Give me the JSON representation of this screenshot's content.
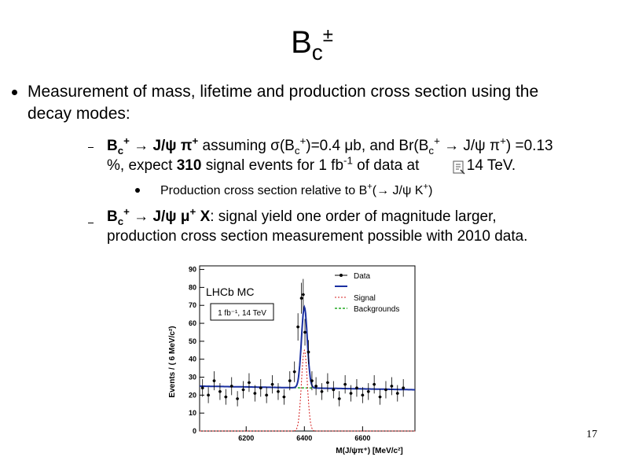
{
  "title": {
    "base": "B",
    "sub": "c",
    "sup": "±"
  },
  "bullet1": {
    "line1": "Measurement of mass, lifetime and production cross section using the",
    "line2": "decay modes:"
  },
  "sub1": {
    "decay_b": "B",
    "decay_c": "c",
    "decay_plus": "+",
    "decay_rest": " → J/ψ π",
    "line1_rest": " assuming σ(B",
    "sigma_c": "c",
    "sigma_plus": "+",
    "line1_mid": ")=0.4 μb, and Br(B",
    "br_c": "c",
    "br_plus": "+",
    "br_mid": " → J/ψ π",
    "br_plus2": "+",
    "br_end": ") =0.13",
    "line2_a": "%, expect ",
    "signal_count": "310",
    "line2_b": " signal events for 1 fb",
    "lumi_exp": "-1",
    "line2_c": " of data at",
    "line2_d": "= 14 TeV."
  },
  "sub1_item": {
    "text_a": "Production cross section relative to B",
    "plus": "+",
    "text_b": "(→ J/ψ K",
    "plus2": "+",
    "text_c": ")"
  },
  "sub2": {
    "decay_b": "B",
    "decay_c": "c",
    "decay_plus": "+",
    "decay_mid": " → J/ψ μ",
    "decay_plus2": "+",
    "decay_x": " X",
    "line1_rest": ": signal yield one order of magnitude larger,",
    "line2": "production cross section measurement possible with 2010 data."
  },
  "plot": {
    "ylabel": "Events / ( 6 MeV/c²)",
    "xlabel": "M(J/ψπ⁺) [MeV/c²]",
    "lhcb_label": "LHCb MC",
    "legend": [
      "Data",
      "Signal",
      "Backgrounds"
    ],
    "lumi_box": "1 fb⁻¹, 14 TeV",
    "yticks": [
      "0",
      "10",
      "20",
      "30",
      "40",
      "50",
      "60",
      "70",
      "80",
      "90"
    ],
    "xticks": [
      "6200",
      "6400",
      "6600"
    ],
    "colors": {
      "fit": "#1a2fa0",
      "signal": "#d42020",
      "background": "#22aa22",
      "data": "#000000"
    }
  },
  "chart_data": {
    "type": "scatter",
    "title": "",
    "xlabel": "M(J/ψπ⁺) [MeV/c²]",
    "ylabel": "Events / ( 6 MeV/c²)",
    "xlim": [
      6040,
      6780
    ],
    "ylim": [
      0,
      92
    ],
    "series": [
      {
        "name": "Data",
        "x": [
          6050,
          6070,
          6090,
          6110,
          6130,
          6150,
          6170,
          6190,
          6210,
          6230,
          6250,
          6270,
          6290,
          6310,
          6330,
          6350,
          6366,
          6378,
          6390,
          6396,
          6402,
          6414,
          6426,
          6440,
          6460,
          6480,
          6500,
          6520,
          6540,
          6560,
          6580,
          6600,
          6620,
          6640,
          6660,
          6680,
          6700,
          6720,
          6740
        ],
        "y": [
          24,
          20,
          28,
          22,
          19,
          25,
          18,
          23,
          27,
          21,
          24,
          20,
          26,
          22,
          19,
          28,
          33,
          58,
          74,
          76,
          55,
          44,
          28,
          25,
          22,
          27,
          23,
          18,
          26,
          21,
          24,
          20,
          22,
          26,
          19,
          23,
          25,
          21,
          24
        ]
      },
      {
        "name": "Signal",
        "type": "gaussian",
        "mean": 6400,
        "sigma": 10,
        "peak": 45
      },
      {
        "name": "Backgrounds",
        "type": "linear",
        "y_start": 25,
        "y_end": 23
      }
    ]
  },
  "slide_number": "17"
}
